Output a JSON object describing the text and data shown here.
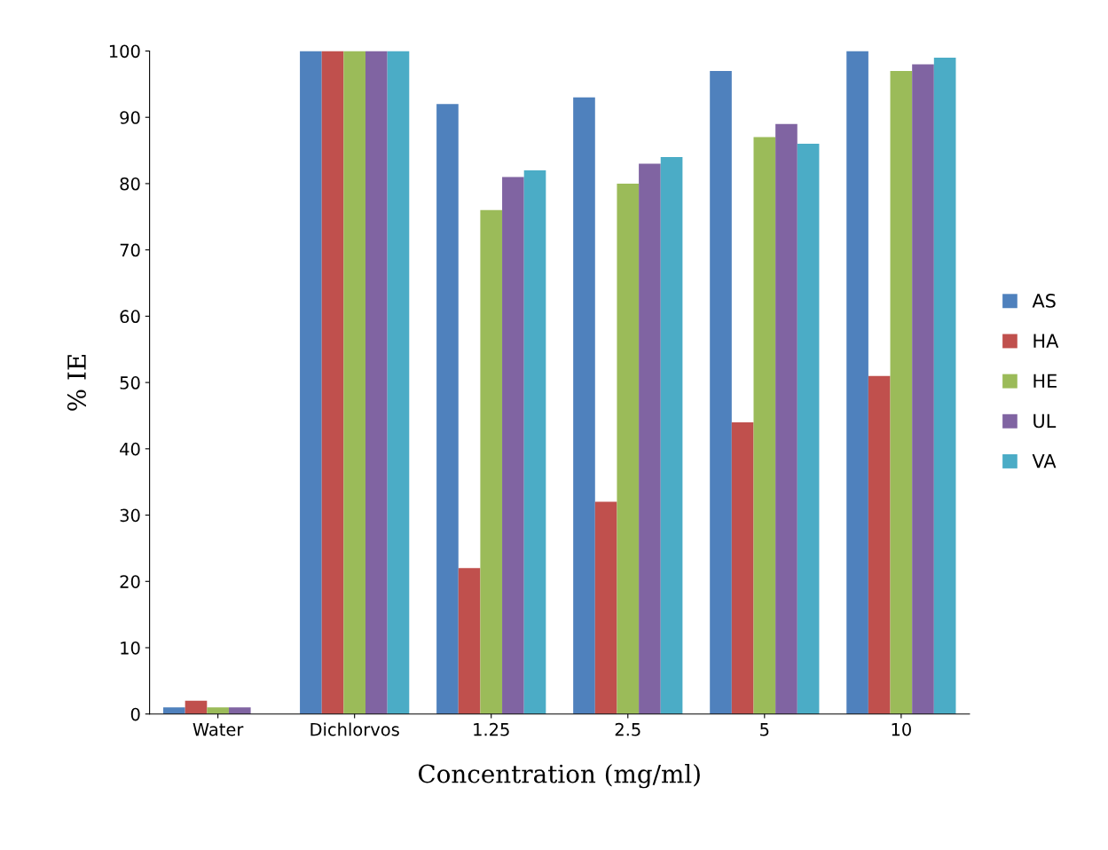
{
  "chart_data": {
    "type": "bar",
    "xlabel": "Concentration (mg/ml)",
    "ylabel": "% IE",
    "categories": [
      "Water",
      "Dichlorvos",
      "1.25",
      "2.5",
      "5",
      "10"
    ],
    "series": [
      {
        "name": "AS",
        "color": "#4f81bd",
        "values": [
          1,
          100,
          92,
          93,
          97,
          100
        ]
      },
      {
        "name": "HA",
        "color": "#c0504d",
        "values": [
          2,
          100,
          22,
          32,
          44,
          51
        ]
      },
      {
        "name": "HE",
        "color": "#9bbb59",
        "values": [
          1,
          100,
          76,
          80,
          87,
          97
        ]
      },
      {
        "name": "UL",
        "color": "#8064a2",
        "values": [
          1,
          100,
          81,
          83,
          89,
          98
        ]
      },
      {
        "name": "VA",
        "color": "#4bacc6",
        "values": [
          0,
          100,
          82,
          84,
          86,
          99
        ]
      }
    ],
    "ylim": [
      0,
      100
    ],
    "yticks": [
      0,
      10,
      20,
      30,
      40,
      50,
      60,
      70,
      80,
      90,
      100
    ],
    "grid": false,
    "legend": "right"
  }
}
